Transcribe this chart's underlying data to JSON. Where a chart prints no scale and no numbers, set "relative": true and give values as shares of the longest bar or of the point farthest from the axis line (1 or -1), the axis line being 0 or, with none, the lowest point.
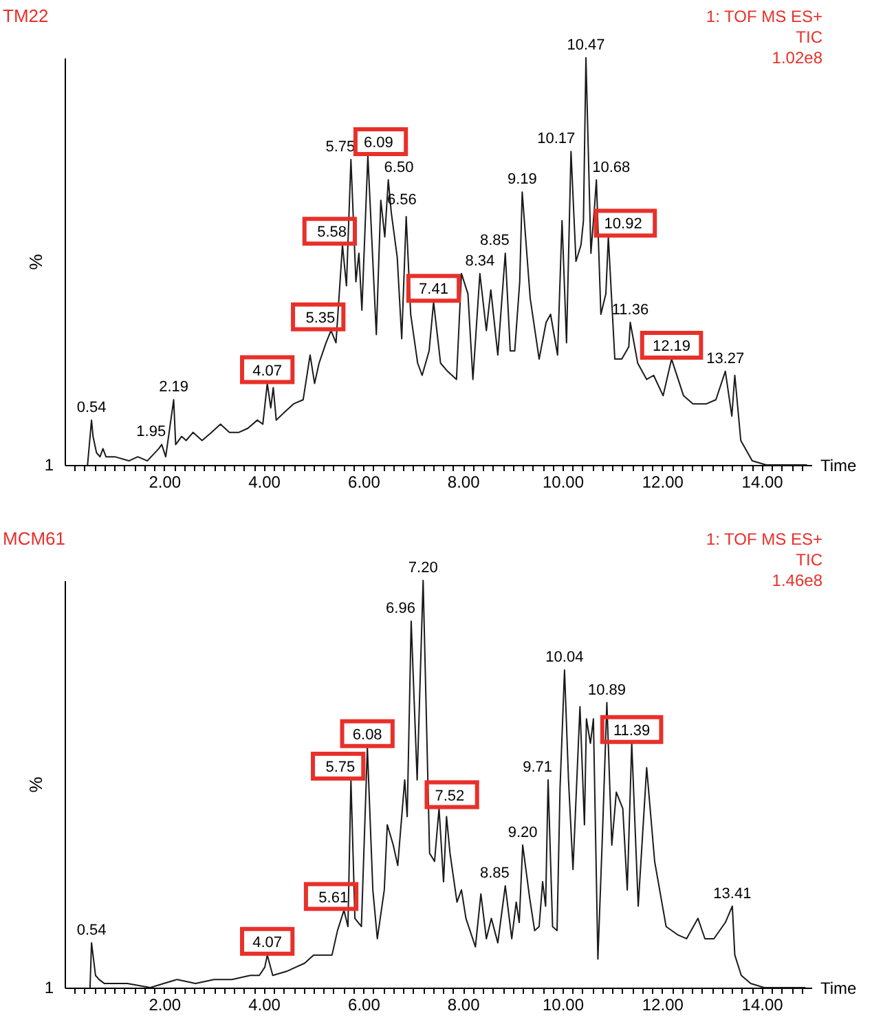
{
  "chart_data": [
    {
      "type": "line",
      "title": "TM22",
      "xlabel": "Time",
      "ylabel": "%",
      "relative": true,
      "color": "#1a1a1a",
      "xlim": [
        0,
        15
      ],
      "xticks": [
        {
          "value": 0.2,
          "label": null
        },
        {
          "value": 0.4,
          "label": null
        },
        {
          "value": 0.6,
          "label": null
        },
        {
          "value": 0.8,
          "label": null
        },
        {
          "value": 1,
          "label": null
        },
        {
          "value": 1.2,
          "label": null
        },
        {
          "value": 1.4,
          "label": null
        },
        {
          "value": 1.6,
          "label": null
        },
        {
          "value": 1.8,
          "label": null
        },
        {
          "value": 2,
          "label": "2.00"
        },
        {
          "value": 2.2,
          "label": null
        },
        {
          "value": 2.4,
          "label": null
        },
        {
          "value": 2.6,
          "label": null
        },
        {
          "value": 2.8,
          "label": null
        },
        {
          "value": 3,
          "label": null
        },
        {
          "value": 3.2,
          "label": null
        },
        {
          "value": 3.4,
          "label": null
        },
        {
          "value": 3.6,
          "label": null
        },
        {
          "value": 3.8,
          "label": null
        },
        {
          "value": 4,
          "label": "4.00"
        },
        {
          "value": 4.2,
          "label": null
        },
        {
          "value": 4.4,
          "label": null
        },
        {
          "value": 4.6,
          "label": null
        },
        {
          "value": 4.8,
          "label": null
        },
        {
          "value": 5,
          "label": null
        },
        {
          "value": 5.2,
          "label": null
        },
        {
          "value": 5.4,
          "label": null
        },
        {
          "value": 5.6,
          "label": null
        },
        {
          "value": 5.8,
          "label": null
        },
        {
          "value": 6,
          "label": "6.00"
        },
        {
          "value": 6.2,
          "label": null
        },
        {
          "value": 6.4,
          "label": null
        },
        {
          "value": 6.6,
          "label": null
        },
        {
          "value": 6.8,
          "label": null
        },
        {
          "value": 7,
          "label": null
        },
        {
          "value": 7.2,
          "label": null
        },
        {
          "value": 7.4,
          "label": null
        },
        {
          "value": 7.6,
          "label": null
        },
        {
          "value": 7.8,
          "label": null
        },
        {
          "value": 8,
          "label": "8.00"
        },
        {
          "value": 8.2,
          "label": null
        },
        {
          "value": 8.4,
          "label": null
        },
        {
          "value": 8.6,
          "label": null
        },
        {
          "value": 8.8,
          "label": null
        },
        {
          "value": 9,
          "label": null
        },
        {
          "value": 9.2,
          "label": null
        },
        {
          "value": 9.4,
          "label": null
        },
        {
          "value": 9.6,
          "label": null
        },
        {
          "value": 9.8,
          "label": null
        },
        {
          "value": 10,
          "label": "10.00"
        },
        {
          "value": 10.2,
          "label": null
        },
        {
          "value": 10.4,
          "label": null
        },
        {
          "value": 10.6,
          "label": null
        },
        {
          "value": 10.8,
          "label": null
        },
        {
          "value": 11,
          "label": null
        },
        {
          "value": 11.2,
          "label": null
        },
        {
          "value": 11.4,
          "label": null
        },
        {
          "value": 11.6,
          "label": null
        },
        {
          "value": 11.8,
          "label": null
        },
        {
          "value": 12,
          "label": "12.00"
        },
        {
          "value": 12.2,
          "label": null
        },
        {
          "value": 12.4,
          "label": null
        },
        {
          "value": 12.6,
          "label": null
        },
        {
          "value": 12.8,
          "label": null
        },
        {
          "value": 13,
          "label": null
        },
        {
          "value": 13.2,
          "label": null
        },
        {
          "value": 13.4,
          "label": null
        },
        {
          "value": 13.6,
          "label": null
        },
        {
          "value": 13.8,
          "label": null
        },
        {
          "value": 14,
          "label": "14.00"
        },
        {
          "value": 14.2,
          "label": null
        },
        {
          "value": 14.4,
          "label": null
        },
        {
          "value": 14.6,
          "label": null
        },
        {
          "value": 14.8,
          "label": null
        }
      ],
      "x": [
        0.46,
        0.54,
        0.57,
        0.64,
        0.71,
        0.77,
        0.83,
        1.01,
        1.29,
        1.47,
        1.66,
        1.89,
        1.95,
        2.03,
        2.19,
        2.23,
        2.35,
        2.44,
        2.58,
        2.76,
        2.95,
        3.13,
        3.31,
        3.5,
        3.68,
        3.87,
        3.98,
        4.07,
        4.14,
        4.19,
        4.25,
        4.42,
        4.6,
        4.79,
        4.93,
        5.02,
        5.11,
        5.25,
        5.35,
        5.45,
        5.58,
        5.66,
        5.75,
        5.85,
        5.91,
        5.97,
        6.09,
        6.19,
        6.26,
        6.35,
        6.43,
        6.5,
        6.56,
        6.68,
        6.77,
        6.86,
        6.95,
        7.09,
        7.18,
        7.32,
        7.41,
        7.55,
        7.69,
        7.87,
        7.97,
        8.1,
        8.2,
        8.34,
        8.47,
        8.56,
        8.7,
        8.85,
        8.95,
        9.04,
        9.14,
        9.19,
        9.35,
        9.53,
        9.67,
        9.76,
        9.9,
        9.99,
        10.08,
        10.17,
        10.27,
        10.37,
        10.42,
        10.47,
        10.57,
        10.64,
        10.68,
        10.77,
        10.87,
        10.92,
        11.05,
        11.19,
        11.33,
        11.36,
        11.51,
        11.69,
        11.83,
        12.02,
        12.19,
        12.43,
        12.62,
        12.89,
        13.08,
        13.27,
        13.4,
        13.46,
        13.58,
        13.81,
        14.09,
        14.9
      ],
      "values": [
        0,
        0.11,
        0.07,
        0.03,
        0.02,
        0.04,
        0.02,
        0.02,
        0.01,
        0.02,
        0.01,
        0.04,
        0.05,
        0.02,
        0.16,
        0.05,
        0.07,
        0.06,
        0.08,
        0.06,
        0.08,
        0.1,
        0.08,
        0.08,
        0.09,
        0.11,
        0.1,
        0.2,
        0.14,
        0.19,
        0.11,
        0.13,
        0.15,
        0.16,
        0.27,
        0.2,
        0.25,
        0.3,
        0.33,
        0.3,
        0.54,
        0.44,
        0.75,
        0.45,
        0.52,
        0.38,
        0.76,
        0.5,
        0.32,
        0.65,
        0.56,
        0.7,
        0.62,
        0.51,
        0.31,
        0.61,
        0.37,
        0.25,
        0.22,
        0.28,
        0.4,
        0.25,
        0.23,
        0.21,
        0.47,
        0.42,
        0.21,
        0.47,
        0.33,
        0.43,
        0.27,
        0.52,
        0.28,
        0.28,
        0.45,
        0.67,
        0.41,
        0.26,
        0.35,
        0.37,
        0.27,
        0.6,
        0.3,
        0.77,
        0.5,
        0.54,
        0.6,
        1,
        0.52,
        0.63,
        0.7,
        0.37,
        0.42,
        0.56,
        0.26,
        0.26,
        0.29,
        0.35,
        0.25,
        0.21,
        0.22,
        0.17,
        0.26,
        0.17,
        0.15,
        0.15,
        0.16,
        0.23,
        0.12,
        0.22,
        0.06,
        0.01,
        0,
        0
      ],
      "annotations": [
        {
          "text": "0.54",
          "x": 0.54,
          "y": 0.11
        },
        {
          "text": "1.95",
          "x": 1.95,
          "y": 0.05
        },
        {
          "text": "2.19",
          "x": 2.19,
          "y": 0.16
        },
        {
          "text": "4.07",
          "x": 4.07,
          "y": 0.2
        },
        {
          "text": "5.35",
          "x": 5.35,
          "y": 0.33
        },
        {
          "text": "5.58",
          "x": 5.58,
          "y": 0.54
        },
        {
          "text": "5.75",
          "x": 5.75,
          "y": 0.75
        },
        {
          "text": "6.09",
          "x": 6.09,
          "y": 0.76
        },
        {
          "text": "6.50",
          "x": 6.5,
          "y": 0.7
        },
        {
          "text": "6.56",
          "x": 6.56,
          "y": 0.62
        },
        {
          "text": "7.41",
          "x": 7.41,
          "y": 0.4
        },
        {
          "text": "8.34",
          "x": 8.34,
          "y": 0.47
        },
        {
          "text": "8.85",
          "x": 8.85,
          "y": 0.52
        },
        {
          "text": "9.19",
          "x": 9.19,
          "y": 0.67
        },
        {
          "text": "10.17",
          "x": 10.17,
          "y": 0.77
        },
        {
          "text": "10.47",
          "x": 10.47,
          "y": 1
        },
        {
          "text": "10.68",
          "x": 10.68,
          "y": 0.7
        },
        {
          "text": "10.92",
          "x": 10.92,
          "y": 0.56
        },
        {
          "text": "11.36",
          "x": 11.36,
          "y": 0.35
        },
        {
          "text": "12.19",
          "x": 12.19,
          "y": 0.26
        },
        {
          "text": "13.27",
          "x": 13.27,
          "y": 0.23
        },
        "1",
        "1: TOF MS ES+",
        "TIC",
        "1.02e8"
      ]
    },
    {
      "type": "line",
      "title": "MCM61",
      "xlabel": "Time",
      "ylabel": "%",
      "relative": true,
      "color": "#1a1a1a",
      "xlim": [
        0,
        15
      ],
      "xticks": [
        {
          "value": 0.2,
          "label": null
        },
        {
          "value": 0.4,
          "label": null
        },
        {
          "value": 0.6,
          "label": null
        },
        {
          "value": 0.8,
          "label": null
        },
        {
          "value": 1,
          "label": null
        },
        {
          "value": 1.2,
          "label": null
        },
        {
          "value": 1.4,
          "label": null
        },
        {
          "value": 1.6,
          "label": null
        },
        {
          "value": 1.8,
          "label": null
        },
        {
          "value": 2,
          "label": "2.00"
        },
        {
          "value": 2.2,
          "label": null
        },
        {
          "value": 2.4,
          "label": null
        },
        {
          "value": 2.6,
          "label": null
        },
        {
          "value": 2.8,
          "label": null
        },
        {
          "value": 3,
          "label": null
        },
        {
          "value": 3.2,
          "label": null
        },
        {
          "value": 3.4,
          "label": null
        },
        {
          "value": 3.6,
          "label": null
        },
        {
          "value": 3.8,
          "label": null
        },
        {
          "value": 4,
          "label": "4.00"
        },
        {
          "value": 4.2,
          "label": null
        },
        {
          "value": 4.4,
          "label": null
        },
        {
          "value": 4.6,
          "label": null
        },
        {
          "value": 4.8,
          "label": null
        },
        {
          "value": 5,
          "label": null
        },
        {
          "value": 5.2,
          "label": null
        },
        {
          "value": 5.4,
          "label": null
        },
        {
          "value": 5.6,
          "label": null
        },
        {
          "value": 5.8,
          "label": null
        },
        {
          "value": 6,
          "label": "6.00"
        },
        {
          "value": 6.2,
          "label": null
        },
        {
          "value": 6.4,
          "label": null
        },
        {
          "value": 6.6,
          "label": null
        },
        {
          "value": 6.8,
          "label": null
        },
        {
          "value": 7,
          "label": null
        },
        {
          "value": 7.2,
          "label": null
        },
        {
          "value": 7.4,
          "label": null
        },
        {
          "value": 7.6,
          "label": null
        },
        {
          "value": 7.8,
          "label": null
        },
        {
          "value": 8,
          "label": "8.00"
        },
        {
          "value": 8.2,
          "label": null
        },
        {
          "value": 8.4,
          "label": null
        },
        {
          "value": 8.6,
          "label": null
        },
        {
          "value": 8.8,
          "label": null
        },
        {
          "value": 9,
          "label": null
        },
        {
          "value": 9.2,
          "label": null
        },
        {
          "value": 9.4,
          "label": null
        },
        {
          "value": 9.6,
          "label": null
        },
        {
          "value": 9.8,
          "label": null
        },
        {
          "value": 10,
          "label": "10.00"
        },
        {
          "value": 10.2,
          "label": null
        },
        {
          "value": 10.4,
          "label": null
        },
        {
          "value": 10.6,
          "label": null
        },
        {
          "value": 10.8,
          "label": null
        },
        {
          "value": 11,
          "label": null
        },
        {
          "value": 11.2,
          "label": null
        },
        {
          "value": 11.4,
          "label": null
        },
        {
          "value": 11.6,
          "label": null
        },
        {
          "value": 11.8,
          "label": null
        },
        {
          "value": 12,
          "label": "12.00"
        },
        {
          "value": 12.2,
          "label": null
        },
        {
          "value": 12.4,
          "label": null
        },
        {
          "value": 12.6,
          "label": null
        },
        {
          "value": 12.8,
          "label": null
        },
        {
          "value": 13,
          "label": null
        },
        {
          "value": 13.2,
          "label": null
        },
        {
          "value": 13.4,
          "label": null
        },
        {
          "value": 13.6,
          "label": null
        },
        {
          "value": 13.8,
          "label": null
        },
        {
          "value": 14,
          "label": "14.00"
        },
        {
          "value": 14.2,
          "label": null
        },
        {
          "value": 14.4,
          "label": null
        },
        {
          "value": 14.6,
          "label": null
        },
        {
          "value": 14.8,
          "label": null
        }
      ],
      "x": [
        0.51,
        0.54,
        0.62,
        0.69,
        0.8,
        1.26,
        1.72,
        1.99,
        2.26,
        2.63,
        3,
        3.36,
        3.73,
        3.91,
        4.02,
        4.07,
        4.18,
        4.46,
        4.64,
        4.82,
        5,
        5.19,
        5.37,
        5.48,
        5.61,
        5.69,
        5.75,
        5.83,
        5.96,
        6.08,
        6.19,
        6.28,
        6.42,
        6.48,
        6.6,
        6.69,
        6.83,
        6.88,
        6.96,
        7.08,
        7.2,
        7.33,
        7.43,
        7.47,
        7.52,
        7.61,
        7.67,
        7.74,
        7.88,
        7.97,
        8.06,
        8.25,
        8.36,
        8.47,
        8.57,
        8.7,
        8.85,
        8.98,
        9.07,
        9.13,
        9.2,
        9.34,
        9.44,
        9.53,
        9.6,
        9.66,
        9.71,
        9.8,
        9.89,
        9.95,
        10.04,
        10.12,
        10.21,
        10.35,
        10.44,
        10.48,
        10.56,
        10.62,
        10.71,
        10.8,
        10.89,
        10.99,
        11.08,
        11.21,
        11.3,
        11.39,
        11.52,
        11.69,
        11.85,
        12.08,
        12.31,
        12.49,
        12.72,
        12.86,
        13.04,
        13.27,
        13.41,
        13.46,
        13.59,
        13.78,
        14.05,
        14.87
      ],
      "values": [
        0,
        0.11,
        0.03,
        0.02,
        0.01,
        0.01,
        0,
        0.01,
        0.02,
        0.01,
        0.02,
        0.02,
        0.03,
        0.03,
        0.05,
        0.08,
        0.03,
        0.04,
        0.05,
        0.06,
        0.08,
        0.08,
        0.08,
        0.14,
        0.19,
        0.15,
        0.51,
        0.17,
        0.15,
        0.59,
        0.24,
        0.12,
        0.24,
        0.4,
        0.35,
        0.3,
        0.51,
        0.42,
        0.9,
        0.51,
        1,
        0.33,
        0.31,
        0.37,
        0.44,
        0.26,
        0.42,
        0.33,
        0.21,
        0.24,
        0.17,
        0.1,
        0.23,
        0.12,
        0.17,
        0.11,
        0.25,
        0.12,
        0.21,
        0.16,
        0.35,
        0.22,
        0.14,
        0.15,
        0.26,
        0.2,
        0.51,
        0.15,
        0.14,
        0.49,
        0.78,
        0.51,
        0.29,
        0.69,
        0.4,
        0.66,
        0.6,
        0.66,
        0.07,
        0.37,
        0.7,
        0.35,
        0.48,
        0.44,
        0.24,
        0.6,
        0.2,
        0.54,
        0.31,
        0.15,
        0.13,
        0.12,
        0.17,
        0.12,
        0.12,
        0.16,
        0.2,
        0.08,
        0.03,
        0.01,
        0,
        0
      ],
      "annotations": [
        {
          "text": "0.54",
          "x": 0.54,
          "y": 0.11
        },
        {
          "text": "4.07",
          "x": 4.07,
          "y": 0.08
        },
        {
          "text": "5.61",
          "x": 5.61,
          "y": 0.19
        },
        {
          "text": "5.75",
          "x": 5.75,
          "y": 0.51
        },
        {
          "text": "6.08",
          "x": 6.08,
          "y": 0.59
        },
        {
          "text": "6.96",
          "x": 6.96,
          "y": 0.9
        },
        {
          "text": "7.20",
          "x": 7.2,
          "y": 1
        },
        {
          "text": "7.52",
          "x": 7.52,
          "y": 0.44
        },
        {
          "text": "8.85",
          "x": 8.85,
          "y": 0.25
        },
        {
          "text": "9.20",
          "x": 9.2,
          "y": 0.35
        },
        {
          "text": "9.71",
          "x": 9.71,
          "y": 0.51
        },
        {
          "text": "10.04",
          "x": 10.04,
          "y": 0.78
        },
        {
          "text": "10.89",
          "x": 10.89,
          "y": 0.7
        },
        {
          "text": "11.39",
          "x": 11.39,
          "y": 0.6
        },
        {
          "text": "13.41",
          "x": 13.41,
          "y": 0.2
        },
        "1",
        "1: TOF MS ES+",
        "TIC",
        "1.46e8"
      ]
    }
  ]
}
